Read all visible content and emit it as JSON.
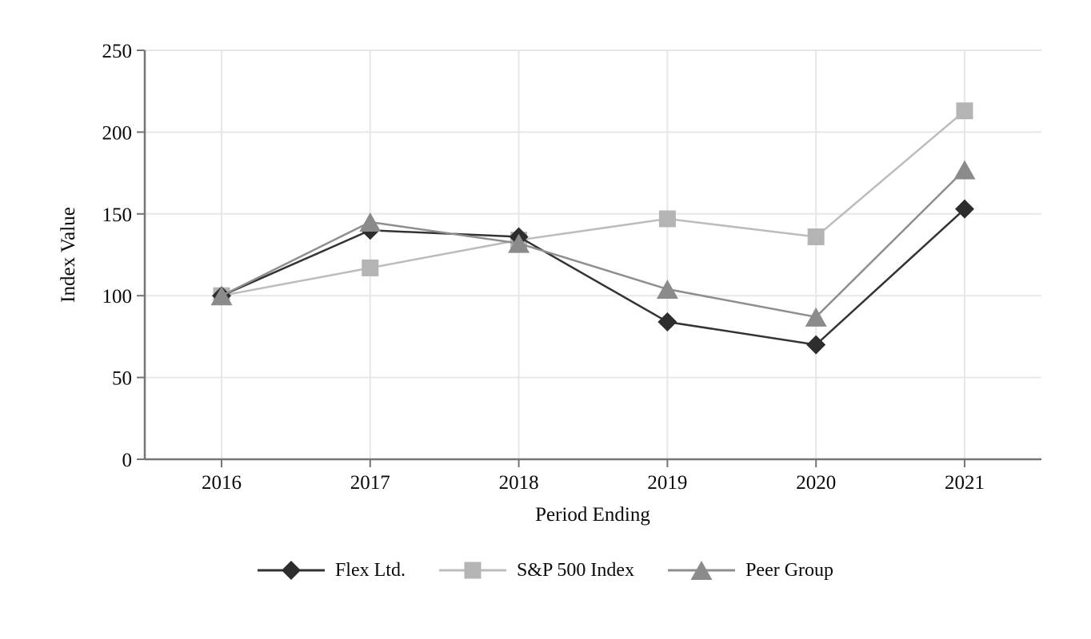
{
  "chart_data": {
    "type": "line",
    "title": "",
    "xlabel": "Period Ending",
    "ylabel": "Index Value",
    "categories": [
      "2016",
      "2017",
      "2018",
      "2019",
      "2020",
      "2021"
    ],
    "yticks": [
      0,
      50,
      100,
      150,
      200,
      250
    ],
    "ylim": [
      0,
      250
    ],
    "grid": true,
    "legend_position": "bottom",
    "colors": {
      "gridline": "#e7e7e7",
      "axis": "#757575",
      "text": "#0a0a0a"
    },
    "series": [
      {
        "name": "Flex Ltd.",
        "marker": "diamond",
        "marker_icon": "diamond-marker-icon",
        "color": "#2d2d2d",
        "line_color": "#333333",
        "z": 2,
        "values": [
          100,
          140,
          136,
          84,
          70,
          153
        ]
      },
      {
        "name": "S&P 500 Index",
        "marker": "square",
        "marker_icon": "square-marker-icon",
        "color": "#b4b4b4",
        "line_color": "#bcbcbc",
        "z": 1,
        "values": [
          100,
          117,
          134,
          147,
          136,
          213
        ]
      },
      {
        "name": "Peer Group",
        "marker": "triangle",
        "marker_icon": "triangle-marker-icon",
        "color": "#8b8b8b",
        "line_color": "#8e8e8e",
        "z": 3,
        "values": [
          100,
          145,
          132,
          104,
          87,
          177
        ]
      }
    ]
  }
}
